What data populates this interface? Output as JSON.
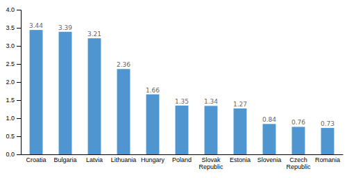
{
  "chart_data": {
    "type": "bar",
    "categories": [
      "Croatia",
      "Bulgaria",
      "Latvia",
      "Lithuania",
      "Hungary",
      "Poland",
      "Slovak\nRepublic",
      "Estonia",
      "Slovenia",
      "Czech\nRepublic",
      "Romania"
    ],
    "values": [
      3.44,
      3.39,
      3.21,
      2.36,
      1.66,
      1.35,
      1.34,
      1.27,
      0.84,
      0.76,
      0.73
    ],
    "color": "#4f96d0",
    "ylim": [
      0,
      4.0
    ],
    "yticks": [
      {
        "value": 0,
        "label": "0.0"
      },
      0.5,
      {
        "value": 1,
        "label": "1.0"
      },
      1.5,
      {
        "value": 2,
        "label": "2.0"
      },
      2.5,
      {
        "value": 3,
        "label": "3.0"
      },
      3.5,
      {
        "value": 4,
        "label": "4.0"
      }
    ],
    "data_labels": true,
    "grid": false
  }
}
